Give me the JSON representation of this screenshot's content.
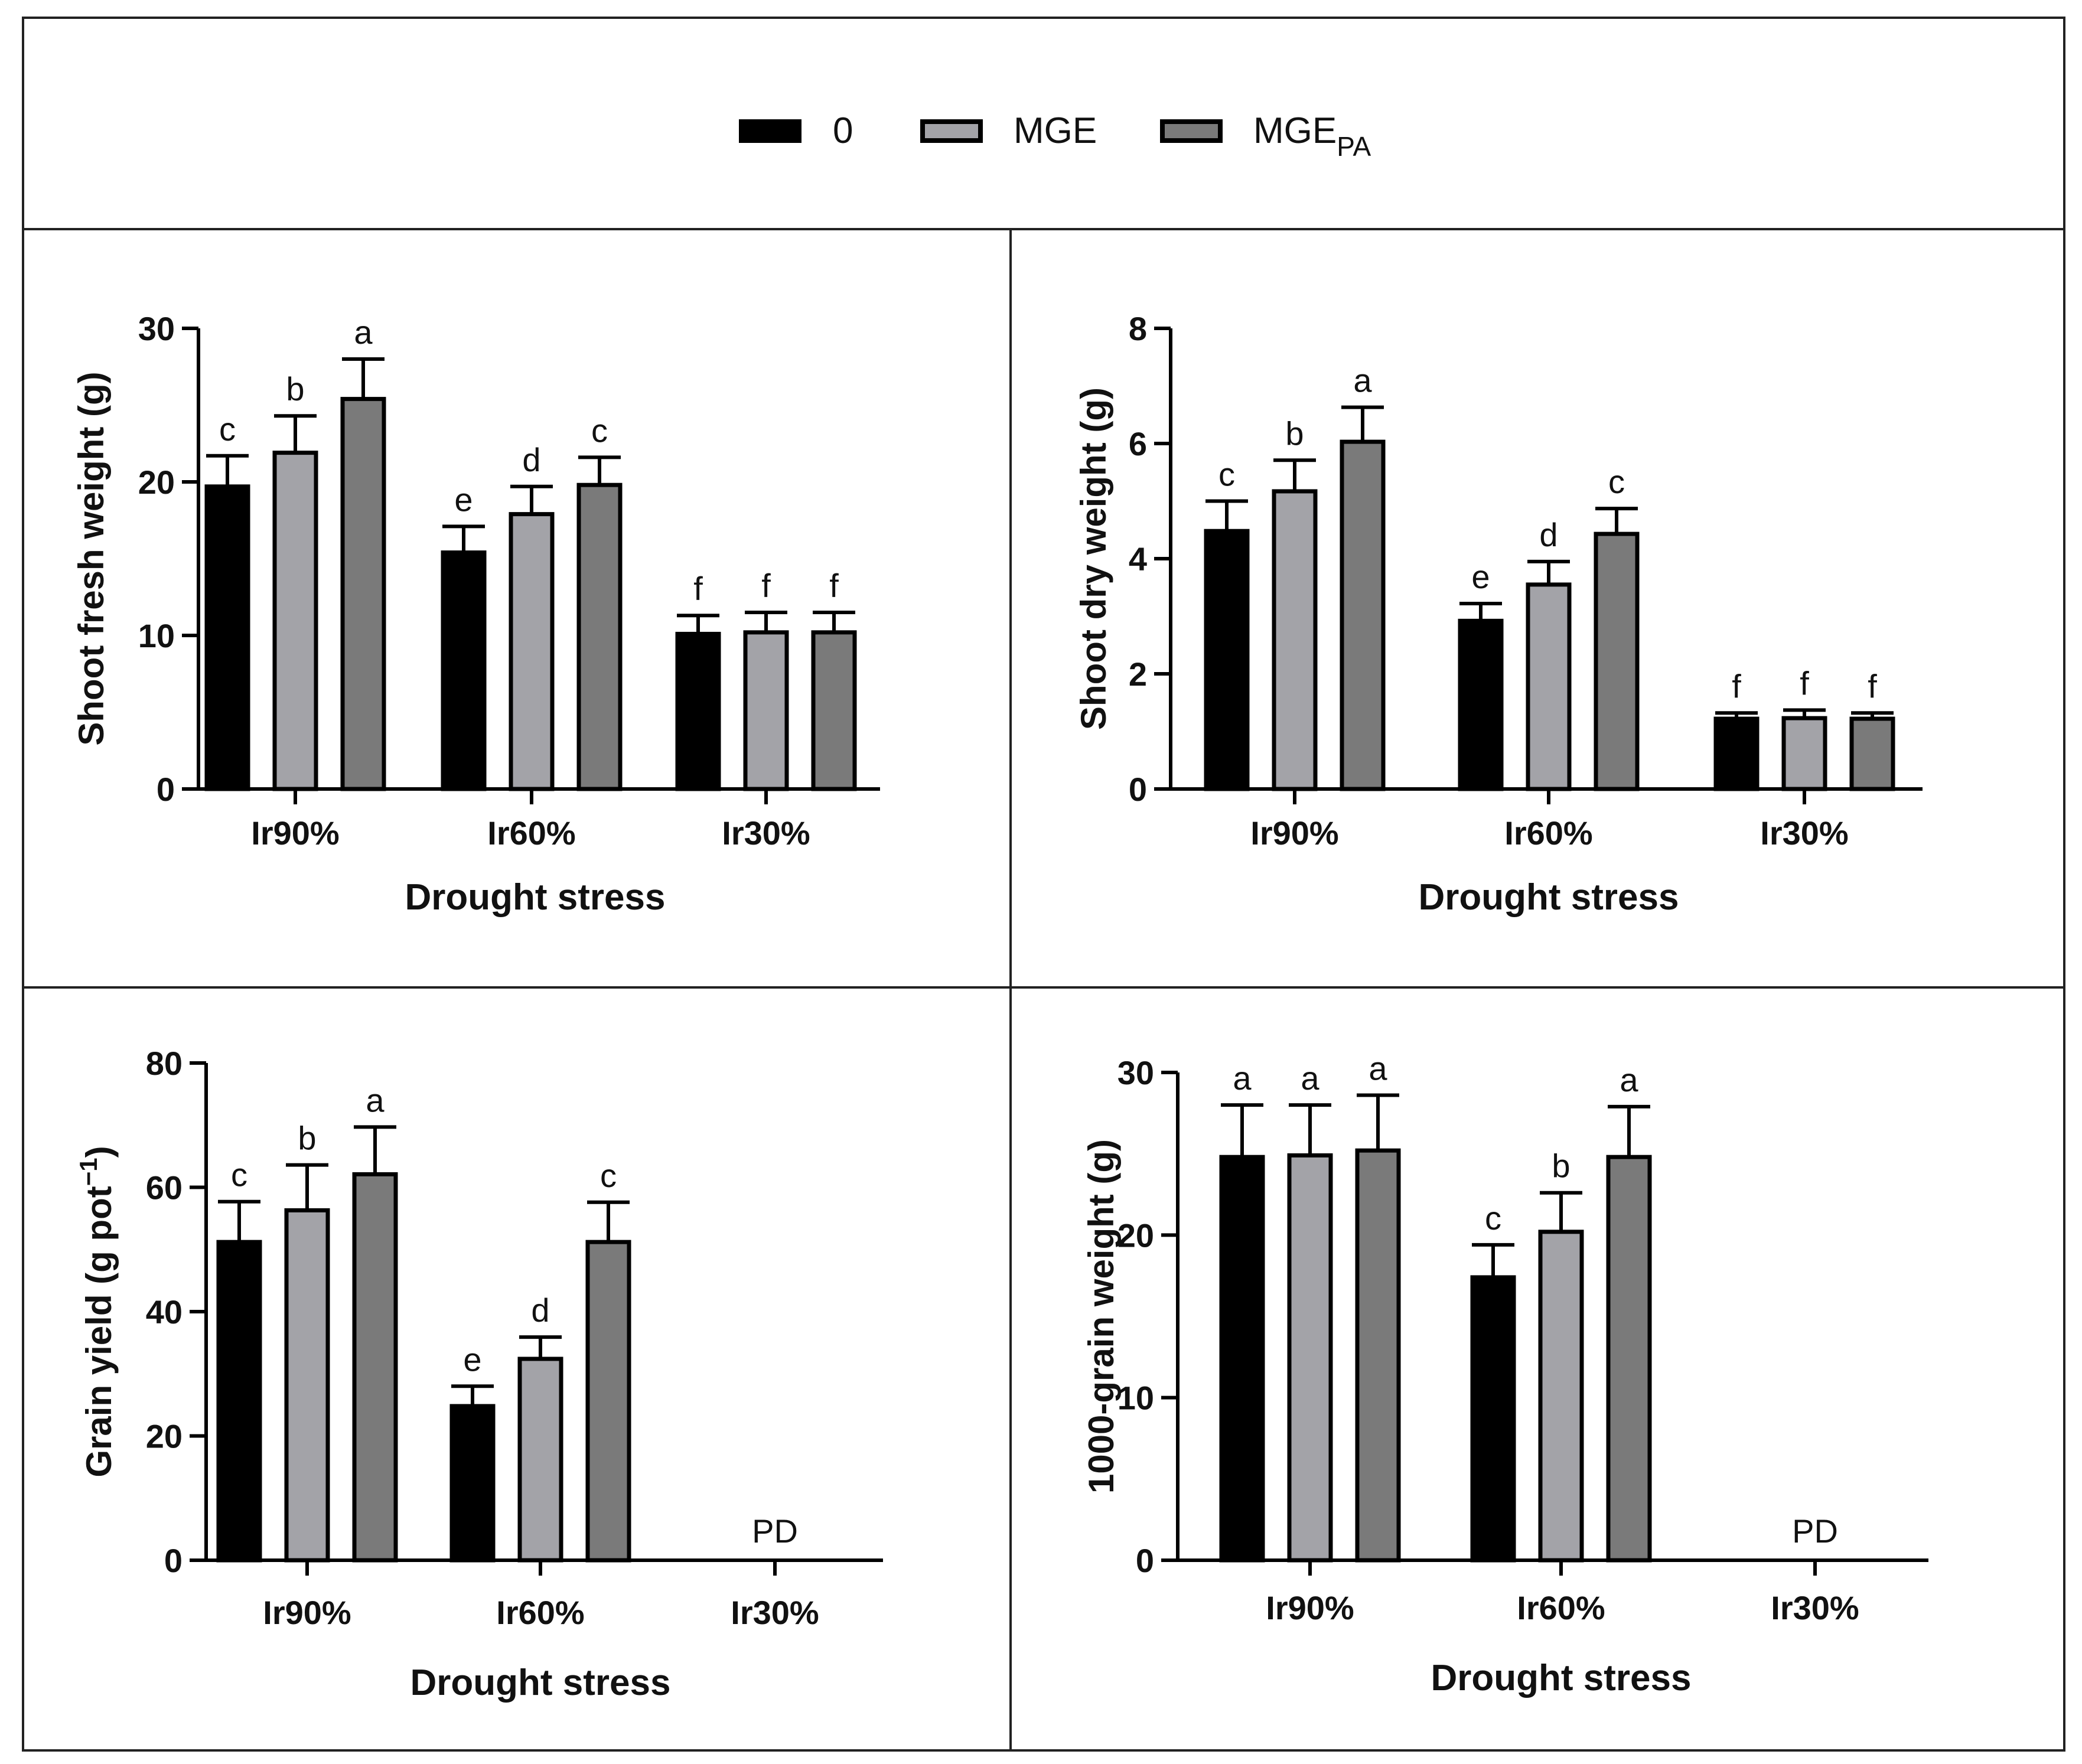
{
  "legend": {
    "items": [
      {
        "label": "0",
        "color": "#000000"
      },
      {
        "label": "MGE",
        "color": "#a3a3a8"
      },
      {
        "label": "MGE",
        "subscript": "PA",
        "color": "#7a7a7a"
      }
    ]
  },
  "chart_data": [
    {
      "type": "bar",
      "title": "",
      "xlabel": "Drought stress",
      "ylabel": "Shoot fresh weight (g)",
      "categories": [
        "Ir90%",
        "Ir60%",
        "Ir30%"
      ],
      "ylim": [
        0,
        30
      ],
      "yticks": [
        "0",
        "10",
        "20",
        "30"
      ],
      "series": [
        {
          "name": "0",
          "color": "#000000",
          "values": [
            19.7,
            15.4,
            10.1
          ],
          "errors": [
            2.0,
            1.7,
            1.2
          ],
          "letters": [
            "c",
            "e",
            "f"
          ]
        },
        {
          "name": "MGE",
          "color": "#a3a3a8",
          "values": [
            21.9,
            17.9,
            10.2
          ],
          "errors": [
            2.4,
            1.8,
            1.3
          ],
          "letters": [
            "b",
            "d",
            "f"
          ]
        },
        {
          "name": "MGE_PA",
          "color": "#7a7a7a",
          "values": [
            25.4,
            19.8,
            10.2
          ],
          "errors": [
            2.6,
            1.8,
            1.3
          ],
          "letters": [
            "a",
            "c",
            "f"
          ]
        }
      ]
    },
    {
      "type": "bar",
      "title": "",
      "xlabel": "Drought stress",
      "ylabel": "Shoot dry weight (g)",
      "categories": [
        "Ir90%",
        "Ir60%",
        "Ir30%"
      ],
      "ylim": [
        0,
        8
      ],
      "yticks": [
        "0",
        "2",
        "4",
        "6",
        "8"
      ],
      "series": [
        {
          "name": "0",
          "color": "#000000",
          "values": [
            4.48,
            2.92,
            1.22
          ],
          "errors": [
            0.52,
            0.3,
            0.1
          ],
          "letters": [
            "c",
            "e",
            "f"
          ]
        },
        {
          "name": "MGE",
          "color": "#a3a3a8",
          "values": [
            5.17,
            3.55,
            1.23
          ],
          "errors": [
            0.54,
            0.4,
            0.14
          ],
          "letters": [
            "b",
            "d",
            "f"
          ]
        },
        {
          "name": "MGE_PA",
          "color": "#7a7a7a",
          "values": [
            6.03,
            4.43,
            1.22
          ],
          "errors": [
            0.6,
            0.44,
            0.1
          ],
          "letters": [
            "a",
            "c",
            "f"
          ]
        }
      ]
    },
    {
      "type": "bar",
      "title": "",
      "xlabel": "Drought stress",
      "ylabel": "Grain yield (g pot",
      "ylabel_sup": "−1",
      "ylabel_end": ")",
      "categories": [
        "Ir90%",
        "Ir60%",
        "Ir30%"
      ],
      "ylim": [
        0,
        80
      ],
      "yticks": [
        "0",
        "20",
        "40",
        "60",
        "80"
      ],
      "annotation": {
        "text": "PD",
        "category": "Ir30%"
      },
      "series": [
        {
          "name": "0",
          "color": "#000000",
          "values": [
            51.2,
            24.8,
            0
          ],
          "errors": [
            6.5,
            3.2,
            0
          ],
          "letters": [
            "c",
            "e",
            ""
          ]
        },
        {
          "name": "MGE",
          "color": "#a3a3a8",
          "values": [
            56.3,
            32.4,
            0
          ],
          "errors": [
            7.3,
            3.5,
            0
          ],
          "letters": [
            "b",
            "d",
            ""
          ]
        },
        {
          "name": "MGE_PA",
          "color": "#7a7a7a",
          "values": [
            62.1,
            51.2,
            0
          ],
          "errors": [
            7.6,
            6.4,
            0
          ],
          "letters": [
            "a",
            "c",
            ""
          ]
        }
      ]
    },
    {
      "type": "bar",
      "title": "",
      "xlabel": "Drought stress",
      "ylabel": "1000-grain weight (g)",
      "categories": [
        "Ir90%",
        "Ir60%",
        "Ir30%"
      ],
      "ylim": [
        0,
        30
      ],
      "yticks": [
        "0",
        "10",
        "20",
        "30"
      ],
      "annotation": {
        "text": "PD",
        "category": "Ir30%"
      },
      "series": [
        {
          "name": "0",
          "color": "#000000",
          "values": [
            24.8,
            17.4,
            0
          ],
          "errors": [
            3.2,
            2.0,
            0
          ],
          "letters": [
            "a",
            "c",
            ""
          ]
        },
        {
          "name": "MGE",
          "color": "#a3a3a8",
          "values": [
            24.9,
            20.2,
            0
          ],
          "errors": [
            3.1,
            2.4,
            0
          ],
          "letters": [
            "a",
            "b",
            ""
          ]
        },
        {
          "name": "MGE_PA",
          "color": "#7a7a7a",
          "values": [
            25.2,
            24.8,
            0
          ],
          "errors": [
            3.4,
            3.1,
            0
          ],
          "letters": [
            "a",
            "a",
            ""
          ]
        }
      ]
    }
  ]
}
